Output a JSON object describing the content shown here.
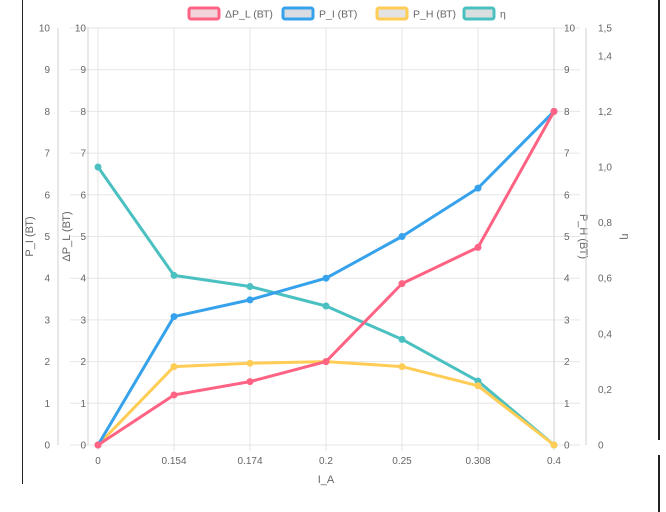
{
  "chart_data": {
    "type": "line",
    "xlabel": "I_A",
    "categories": [
      "0",
      "0.154",
      "0.174",
      "0.2",
      "0.25",
      "0.308",
      "0.4"
    ],
    "grid": true,
    "legend_position": "top",
    "series": [
      {
        "name": "ΔP_L (ВТ)",
        "color": "#ff6384",
        "fill": "#f1d4da",
        "axis": "y_dpl",
        "values": [
          0,
          1.2,
          1.52,
          2.0,
          3.87,
          4.74,
          8.0
        ]
      },
      {
        "name": "P_I (ВТ)",
        "color": "#36a2eb",
        "fill": "#d9dde3",
        "axis": "y_pi",
        "values": [
          0,
          3.08,
          3.48,
          4.0,
          5.0,
          6.16,
          8.0
        ]
      },
      {
        "name": "P_H (ВТ)",
        "color": "#ffcd56",
        "fill": "#e3e3e3",
        "axis": "y_ph",
        "values": [
          0,
          1.88,
          1.96,
          2.0,
          1.88,
          1.42,
          0
        ]
      },
      {
        "name": "η",
        "color": "#4bc0c0",
        "fill": "#d9dede",
        "axis": "y_eta",
        "values": [
          1.0,
          0.61,
          0.57,
          0.5,
          0.38,
          0.23,
          0
        ]
      }
    ],
    "axes": {
      "y_pi": {
        "label": "P_I (ВТ)",
        "position": "left-outer",
        "min": 0,
        "max": 10,
        "ticks": [
          "0",
          "1",
          "2",
          "3",
          "4",
          "5",
          "6",
          "7",
          "8",
          "9",
          "10"
        ]
      },
      "y_dpl": {
        "label": "ΔP_L (ВТ)",
        "position": "left-inner",
        "min": 0,
        "max": 10,
        "ticks": [
          "0",
          "1",
          "2",
          "3",
          "4",
          "5",
          "6",
          "7",
          "8",
          "9",
          "10"
        ]
      },
      "y_ph": {
        "label": "P_H (ВТ)",
        "position": "right-inner",
        "min": 0,
        "max": 10,
        "ticks": [
          "0",
          "1",
          "2",
          "3",
          "4",
          "5",
          "6",
          "7",
          "8",
          "9",
          "10"
        ]
      },
      "y_eta": {
        "label": "η",
        "position": "right-outer",
        "min": 0,
        "max": 1.5,
        "tick_values": [
          0,
          0.2,
          0.4,
          0.6,
          0.8,
          1.0,
          1.2,
          1.4,
          1.5
        ],
        "ticks": [
          "0",
          "0,2",
          "0,4",
          "0,6",
          "0,8",
          "1,0",
          "1,2",
          "1,4",
          "1,5"
        ]
      }
    }
  }
}
